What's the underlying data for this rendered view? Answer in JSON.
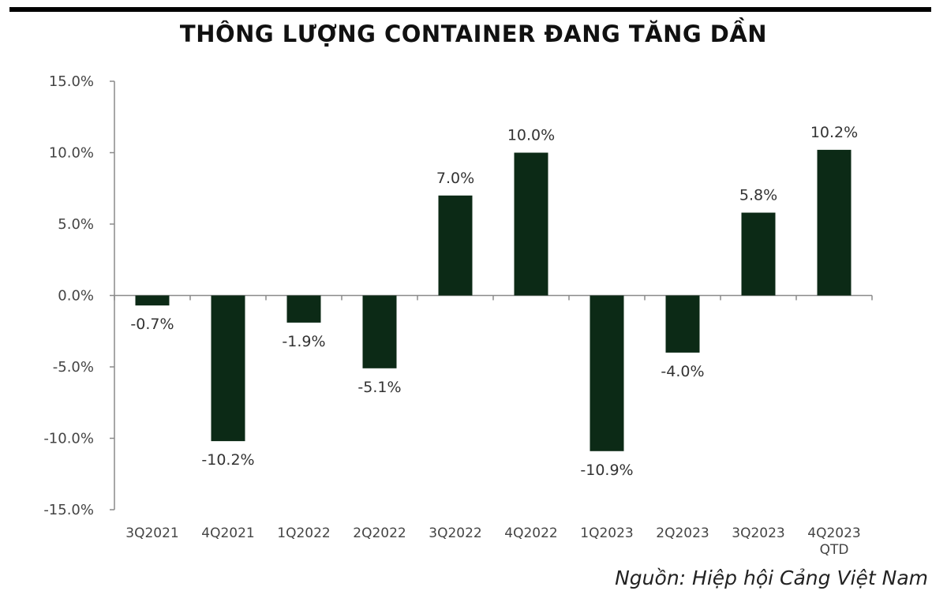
{
  "source": "Nguồn: Hiệp hội Cảng Việt Nam",
  "chart_data": {
    "type": "bar",
    "title": "THÔNG LƯỢNG CONTAINER ĐANG TĂNG DẦN",
    "categories": [
      "3Q2021",
      "4Q2021",
      "1Q2022",
      "2Q2022",
      "3Q2022",
      "4Q2022",
      "1Q2023",
      "2Q2023",
      "3Q2023",
      "4Q2023"
    ],
    "category_sublabels": [
      "",
      "",
      "",
      "",
      "",
      "",
      "",
      "",
      "",
      "QTD"
    ],
    "values": [
      -0.7,
      -10.2,
      -1.9,
      -5.1,
      7.0,
      10.0,
      -10.9,
      -4.0,
      5.8,
      10.2
    ],
    "data_labels": [
      "-0.7%",
      "-10.2%",
      "-1.9%",
      "-5.1%",
      "7.0%",
      "10.0%",
      "-10.9%",
      "-4.0%",
      "5.8%",
      "10.2%"
    ],
    "ylim": [
      -15,
      15
    ],
    "yticks": [
      15,
      10,
      5,
      0,
      -5,
      -10,
      -15
    ],
    "ytick_labels": [
      "15.0%",
      "10.0%",
      "5.0%",
      "0.0%",
      "-5.0%",
      "-10.0%",
      "-15.0%"
    ],
    "xlabel": "",
    "ylabel": "",
    "grid": false,
    "bar_color": "#0c2a16"
  }
}
